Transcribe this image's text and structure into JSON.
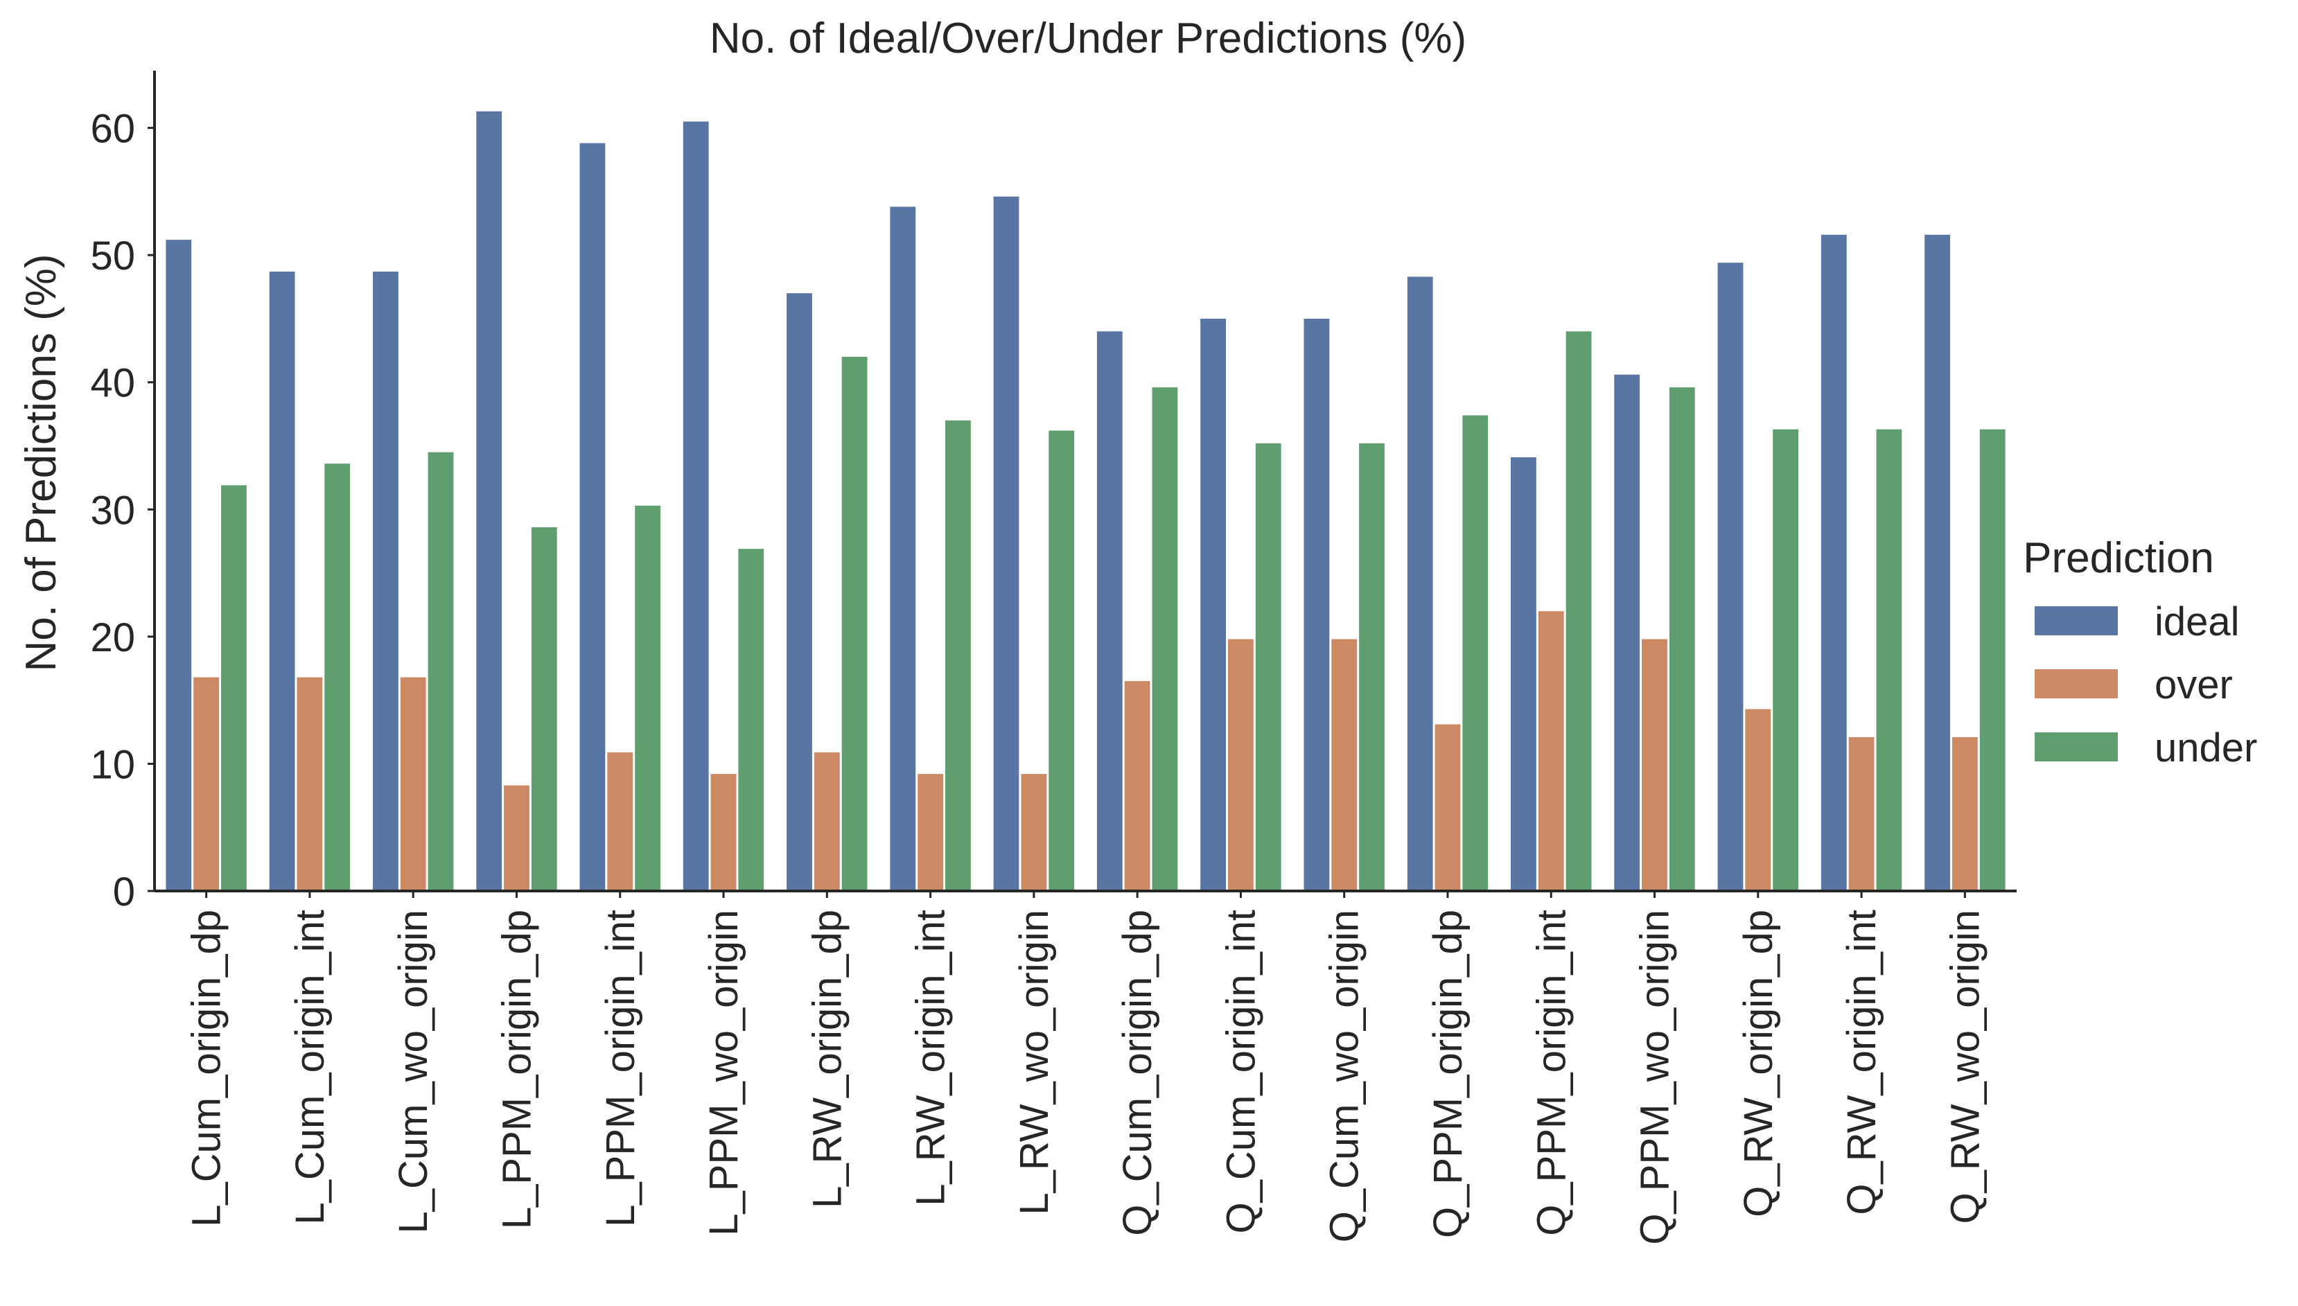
{
  "chart_data": {
    "type": "bar",
    "title": "No. of Ideal/Over/Under Predictions (%)",
    "xlabel": "",
    "ylabel": "No. of Predictions (%)",
    "ylim": [
      0,
      64.5
    ],
    "yticks": [
      0,
      10,
      20,
      30,
      40,
      50,
      60
    ],
    "grid": false,
    "legend": {
      "title": "Prediction",
      "placement": "center-right, outside plot"
    },
    "categories": [
      "L_Cum_origin_dp",
      "L_Cum_origin_int",
      "L_Cum_wo_origin",
      "L_PPM_origin_dp",
      "L_PPM_origin_int",
      "L_PPM_wo_origin",
      "L_RW_origin_dp",
      "L_RW_origin_int",
      "L_RW_wo_origin",
      "Q_Cum_origin_dp",
      "Q_Cum_origin_int",
      "Q_Cum_wo_origin",
      "Q_PPM_origin_dp",
      "Q_PPM_origin_int",
      "Q_PPM_wo_origin",
      "Q_RW_origin_dp",
      "Q_RW_origin_int",
      "Q_RW_wo_origin"
    ],
    "series": [
      {
        "name": "ideal",
        "color": "#5875a4",
        "values": [
          51.2,
          48.7,
          48.7,
          61.3,
          58.8,
          60.5,
          47.0,
          53.8,
          54.6,
          44.0,
          45.0,
          45.0,
          48.3,
          34.1,
          40.6,
          49.4,
          51.6,
          51.6
        ]
      },
      {
        "name": "over",
        "color": "#cc8963",
        "values": [
          16.8,
          16.8,
          16.8,
          8.3,
          10.9,
          9.2,
          10.9,
          9.2,
          9.2,
          16.5,
          19.8,
          19.8,
          13.1,
          22.0,
          19.8,
          14.3,
          12.1,
          12.1
        ]
      },
      {
        "name": "under",
        "color": "#5f9e6e",
        "values": [
          31.9,
          33.6,
          34.5,
          28.6,
          30.3,
          26.9,
          42.0,
          37.0,
          36.2,
          39.6,
          35.2,
          35.2,
          37.4,
          44.0,
          39.6,
          36.3,
          36.3,
          36.3
        ]
      }
    ]
  }
}
